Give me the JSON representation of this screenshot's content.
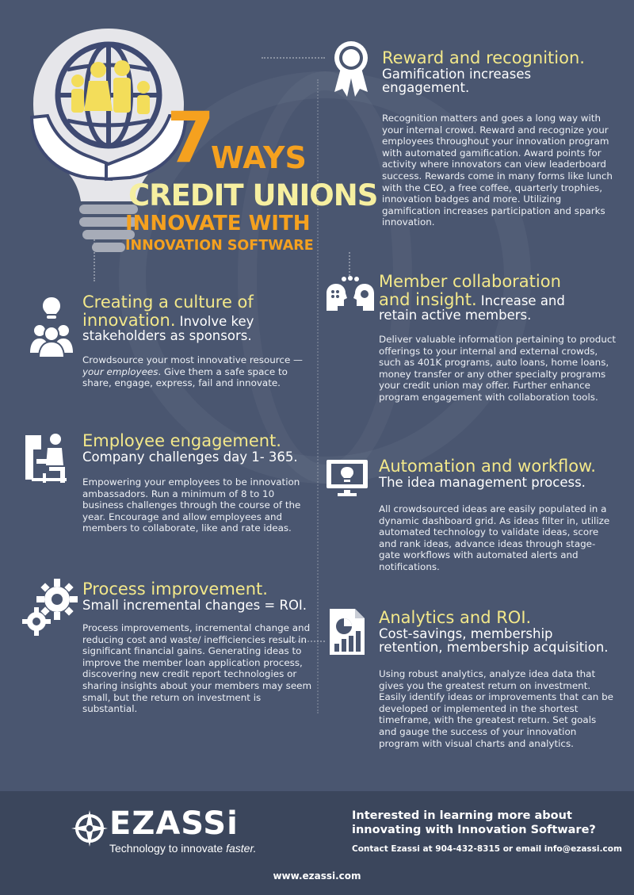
{
  "hero": {
    "number": "7",
    "ways": "WAYS",
    "line1": "CREDIT UNIONS",
    "line2": "INNOVATE WITH",
    "line3": "INNOVATION SOFTWARE"
  },
  "sections": {
    "culture": {
      "title": "Creating a culture of",
      "title2": "innovation.",
      "sub_inline": "Involve key",
      "sub2": "stakeholders as sponsors.",
      "body_1": "Crowdsource your most innovative resource — ",
      "body_em": "your employees",
      "body_2": ". Give them a safe space to share, engage, express, fail and innovate."
    },
    "engagement": {
      "title": "Employee engagement.",
      "sub": "Company challenges day 1- 365.",
      "body": "Empowering your employees to be innovation ambassadors. Run a minimum of 8 to 10 business challenges through the course of the year. Encourage and allow employees and members to collaborate, like and rate ideas."
    },
    "process": {
      "title": "Process improvement.",
      "sub": "Small incremental changes = ROI.",
      "body": "Process improvements, incremental change and reducing cost and waste/ inefficiencies result in significant financial gains. Generating ideas to improve the member loan application process, discovering new credit report technologies or sharing insights about your members may seem small, but the return on investment is substantial."
    },
    "reward": {
      "title": "Reward and recognition.",
      "sub": "Gamification increases engagement.",
      "body": "Recognition matters and goes a long way with your internal crowd. Reward and recognize your employees throughout your innovation program with automated gamification. Award points for activity where innovators can view leaderboard success. Rewards come in many forms like lunch with the CEO, a free coffee, quarterly trophies, innovation badges and more. Utilizing gamification increases participation and sparks innovation."
    },
    "member": {
      "title": "Member collaboration",
      "title2": "and insight.",
      "sub_inline": "Increase and",
      "sub2": "retain active members.",
      "body": "Deliver valuable information pertaining to product offerings to your internal and external crowds, such as 401K programs, auto loans, home loans, money transfer or any other specialty programs your credit union may offer. Further enhance program engagement with collaboration tools."
    },
    "automation": {
      "title": "Automation and workflow.",
      "sub": "The idea management process.",
      "body": "All crowdsourced ideas are easily populated in a dynamic dashboard grid. As ideas filter in, utilize automated technology to validate ideas, score and rank ideas, advance ideas through stage-gate workflows with automated alerts and notifications."
    },
    "analytics": {
      "title": "Analytics and ROI.",
      "sub": "Cost-savings, membership retention, membership acquisition.",
      "body": "Using robust analytics, analyze idea data that gives you the greatest return on investment. Easily identify ideas or improvements that can be developed or implemented in the shortest timeframe, with the greatest return. Set goals and gauge the success of your innovation program with visual charts and analytics."
    }
  },
  "footer": {
    "brand": "EZASSi",
    "tagline_1": "Technology to innovate ",
    "tagline_em": "faster.",
    "cta": "Interested in learning more about innovating with Innovation Software?",
    "contact": "Contact Ezassi at 904-432-8315 or email info@ezassi.com",
    "url": "www.ezassi.com"
  },
  "colors": {
    "background": "#4a5670",
    "heading": "#f3e88a",
    "accent": "#f5a11f",
    "footer": "#3b465c"
  },
  "icons": [
    "lightbulb-hands-globe-icon",
    "lightbulb-people-icon",
    "person-at-desk-icon",
    "gears-icon",
    "ribbon-award-icon",
    "collaboration-heads-icon",
    "monitor-lightbulb-icon",
    "analytics-report-icon",
    "compass-logo-icon"
  ]
}
